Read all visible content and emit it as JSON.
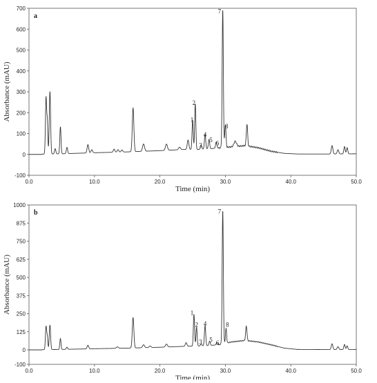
{
  "chart_data": [
    {
      "type": "line",
      "panel_label": "a",
      "xlabel": "Time (min)",
      "ylabel": "Absorbance (mAU)",
      "xlim": [
        0,
        50
      ],
      "ylim": [
        -100,
        700
      ],
      "x_ticks": [
        0,
        10,
        20,
        30,
        40,
        50
      ],
      "x_tick_labels": [
        "0.0",
        "10.0",
        "20.0",
        "30.0",
        "40.0",
        "50.0"
      ],
      "y_ticks": [
        -100,
        0,
        100,
        200,
        300,
        400,
        500,
        600,
        700
      ],
      "y_tick_labels": [
        "-100",
        "0",
        "100",
        "200",
        "300",
        "400",
        "500",
        "600",
        "700"
      ],
      "grid": false,
      "line_color": "#333333",
      "baseline": [
        [
          0,
          0
        ],
        [
          5,
          3
        ],
        [
          10,
          8
        ],
        [
          15,
          12
        ],
        [
          20,
          18
        ],
        [
          24,
          24
        ],
        [
          26,
          24
        ],
        [
          28,
          28
        ],
        [
          30,
          34
        ],
        [
          31,
          36
        ],
        [
          33,
          42
        ],
        [
          35,
          32
        ],
        [
          37,
          15
        ],
        [
          39,
          5
        ],
        [
          41,
          2
        ],
        [
          46,
          2
        ],
        [
          50,
          3
        ]
      ],
      "peaks": [
        {
          "x": 2.6,
          "y": 270,
          "w": 0.09
        },
        {
          "x": 2.8,
          "y": 150,
          "w": 0.08
        },
        {
          "x": 3.2,
          "y": 300,
          "w": 0.1
        },
        {
          "x": 4.0,
          "y": 25,
          "w": 0.1
        },
        {
          "x": 4.8,
          "y": 130,
          "w": 0.09
        },
        {
          "x": 5.8,
          "y": 30,
          "w": 0.1
        },
        {
          "x": 9.0,
          "y": 40,
          "w": 0.12
        },
        {
          "x": 9.6,
          "y": 15,
          "w": 0.12
        },
        {
          "x": 13.0,
          "y": 15,
          "w": 0.12
        },
        {
          "x": 13.6,
          "y": 12,
          "w": 0.12
        },
        {
          "x": 14.2,
          "y": 10,
          "w": 0.12
        },
        {
          "x": 15.9,
          "y": 210,
          "w": 0.12
        },
        {
          "x": 17.5,
          "y": 35,
          "w": 0.15
        },
        {
          "x": 21.0,
          "y": 30,
          "w": 0.15
        },
        {
          "x": 23.0,
          "y": 12,
          "w": 0.15
        },
        {
          "x": 24.3,
          "y": 45,
          "w": 0.12
        },
        {
          "x": 25.0,
          "y": 140,
          "w": 0.09
        },
        {
          "x": 25.4,
          "y": 220,
          "w": 0.09
        },
        {
          "x": 26.3,
          "y": 20,
          "w": 0.1
        },
        {
          "x": 26.9,
          "y": 70,
          "w": 0.1
        },
        {
          "x": 27.5,
          "y": 45,
          "w": 0.1
        },
        {
          "x": 28.6,
          "y": 30,
          "w": 0.1
        },
        {
          "x": 29.6,
          "y": 660,
          "w": 0.09
        },
        {
          "x": 30.0,
          "y": 110,
          "w": 0.09
        },
        {
          "x": 31.5,
          "y": 25,
          "w": 0.2
        },
        {
          "x": 33.3,
          "y": 105,
          "w": 0.1
        },
        {
          "x": 46.3,
          "y": 40,
          "w": 0.12
        },
        {
          "x": 47.2,
          "y": 20,
          "w": 0.12
        },
        {
          "x": 48.2,
          "y": 35,
          "w": 0.1
        },
        {
          "x": 48.6,
          "y": 30,
          "w": 0.1
        }
      ],
      "annotations": [
        {
          "text": "1",
          "x": 24.9,
          "y": 150
        },
        {
          "text": "2",
          "x": 25.2,
          "y": 230
        },
        {
          "text": "3",
          "x": 26.2,
          "y": 28
        },
        {
          "text": "4",
          "x": 26.9,
          "y": 78
        },
        {
          "text": "5",
          "x": 27.8,
          "y": 52
        },
        {
          "text": "6",
          "x": 28.8,
          "y": 38
        },
        {
          "text": "7",
          "x": 29.1,
          "y": 668
        },
        {
          "text": "8",
          "x": 30.2,
          "y": 118
        }
      ]
    },
    {
      "type": "line",
      "panel_label": "b",
      "xlabel": "Time (min)",
      "ylabel": "Absorbance (mAU)",
      "xlim": [
        0,
        50
      ],
      "ylim": [
        -100,
        1000
      ],
      "x_ticks": [
        0,
        10,
        20,
        30,
        40,
        50
      ],
      "x_tick_labels": [
        "0.0",
        "10.0",
        "20.0",
        "30.0",
        "40.0",
        "50.0"
      ],
      "y_ticks": [
        -100,
        0,
        125,
        250,
        375,
        500,
        625,
        750,
        875,
        1000
      ],
      "y_tick_labels": [
        "-100",
        "0",
        "125",
        "250",
        "375",
        "500",
        "625",
        "750",
        "875",
        "1000"
      ],
      "grid": false,
      "line_color": "#333333",
      "baseline": [
        [
          0,
          0
        ],
        [
          5,
          3
        ],
        [
          10,
          8
        ],
        [
          15,
          12
        ],
        [
          20,
          18
        ],
        [
          24,
          25
        ],
        [
          27,
          28
        ],
        [
          29,
          36
        ],
        [
          31,
          55
        ],
        [
          33,
          65
        ],
        [
          35,
          55
        ],
        [
          37,
          35
        ],
        [
          39,
          12
        ],
        [
          41,
          3
        ],
        [
          46,
          2
        ],
        [
          50,
          3
        ]
      ],
      "peaks": [
        {
          "x": 2.6,
          "y": 160,
          "w": 0.09
        },
        {
          "x": 2.8,
          "y": 90,
          "w": 0.08
        },
        {
          "x": 3.2,
          "y": 170,
          "w": 0.1
        },
        {
          "x": 4.8,
          "y": 75,
          "w": 0.09
        },
        {
          "x": 5.8,
          "y": 15,
          "w": 0.1
        },
        {
          "x": 9.0,
          "y": 25,
          "w": 0.12
        },
        {
          "x": 13.5,
          "y": 10,
          "w": 0.15
        },
        {
          "x": 15.9,
          "y": 210,
          "w": 0.12
        },
        {
          "x": 17.5,
          "y": 20,
          "w": 0.15
        },
        {
          "x": 18.5,
          "y": 10,
          "w": 0.15
        },
        {
          "x": 21.0,
          "y": 20,
          "w": 0.15
        },
        {
          "x": 24.0,
          "y": 25,
          "w": 0.12
        },
        {
          "x": 25.2,
          "y": 220,
          "w": 0.09
        },
        {
          "x": 25.6,
          "y": 130,
          "w": 0.09
        },
        {
          "x": 26.3,
          "y": 15,
          "w": 0.1
        },
        {
          "x": 26.9,
          "y": 140,
          "w": 0.1
        },
        {
          "x": 27.6,
          "y": 30,
          "w": 0.1
        },
        {
          "x": 28.7,
          "y": 15,
          "w": 0.1
        },
        {
          "x": 29.6,
          "y": 920,
          "w": 0.09
        },
        {
          "x": 30.1,
          "y": 100,
          "w": 0.09
        },
        {
          "x": 33.2,
          "y": 100,
          "w": 0.1
        },
        {
          "x": 46.3,
          "y": 40,
          "w": 0.12
        },
        {
          "x": 47.2,
          "y": 20,
          "w": 0.12
        },
        {
          "x": 48.2,
          "y": 35,
          "w": 0.1
        },
        {
          "x": 48.6,
          "y": 25,
          "w": 0.1
        }
      ],
      "annotations": [
        {
          "text": "1",
          "x": 24.9,
          "y": 230
        },
        {
          "text": "2",
          "x": 25.6,
          "y": 150
        },
        {
          "text": "3",
          "x": 26.2,
          "y": 30
        },
        {
          "text": "4",
          "x": 26.9,
          "y": 158
        },
        {
          "text": "5",
          "x": 27.8,
          "y": 45
        },
        {
          "text": "6",
          "x": 28.8,
          "y": 25
        },
        {
          "text": "7",
          "x": 29.1,
          "y": 930
        },
        {
          "text": "8",
          "x": 30.3,
          "y": 150
        }
      ]
    }
  ]
}
